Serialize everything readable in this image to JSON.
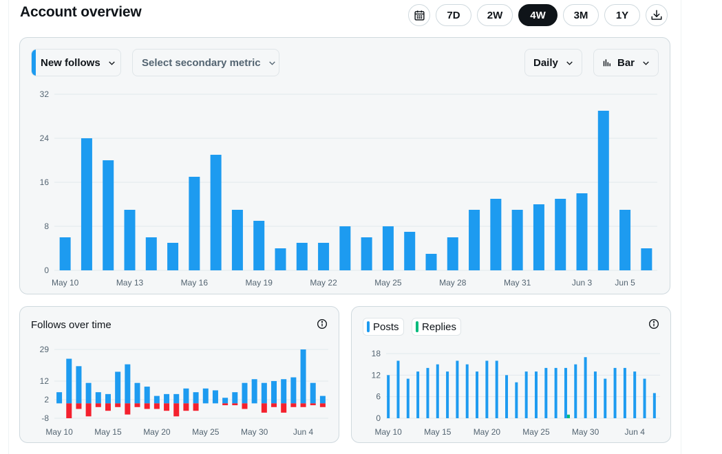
{
  "header": {
    "title": "Account overview",
    "calendar_icon": "calendar-icon",
    "download_icon": "download-icon",
    "ranges": [
      {
        "label": "7D",
        "active": false
      },
      {
        "label": "2W",
        "active": false
      },
      {
        "label": "4W",
        "active": true
      },
      {
        "label": "3M",
        "active": false
      },
      {
        "label": "1Y",
        "active": false
      }
    ]
  },
  "main": {
    "primary_metric": "New follows",
    "secondary_metric": "Select secondary metric",
    "interval": "Daily",
    "chart_type": "Bar",
    "chart_type_icon": "bar-chart-icon"
  },
  "follows_panel": {
    "title": "Follows over time",
    "info_icon": "info-icon"
  },
  "posts_panel": {
    "legend": [
      "Posts",
      "Replies"
    ],
    "info_icon": "info-icon"
  },
  "colors": {
    "blue": "#1d9bf0",
    "red": "#f4212e",
    "green": "#00ba7c"
  },
  "chart_data": [
    {
      "type": "bar",
      "x": [
        "May 10",
        "May 11",
        "May 12",
        "May 13",
        "May 14",
        "May 15",
        "May 16",
        "May 17",
        "May 18",
        "May 19",
        "May 20",
        "May 21",
        "May 22",
        "May 23",
        "May 24",
        "May 25",
        "May 26",
        "May 27",
        "May 28",
        "May 29",
        "May 30",
        "May 31",
        "Jun 1",
        "Jun 2",
        "Jun 3",
        "Jun 4",
        "Jun 5",
        "Jun 6"
      ],
      "x_tick_labels": [
        "May 10",
        "May 13",
        "May 16",
        "May 19",
        "May 22",
        "May 25",
        "May 28",
        "May 31",
        "Jun 3",
        "Jun 5"
      ],
      "series": [
        {
          "name": "New follows",
          "color": "#1d9bf0",
          "values": [
            6,
            24,
            20,
            11,
            6,
            5,
            17,
            21,
            11,
            9,
            4,
            5,
            5,
            8,
            6,
            8,
            7,
            3,
            6,
            11,
            13,
            11,
            12,
            13,
            14,
            29,
            11,
            4
          ]
        }
      ],
      "yticks": [
        0,
        8,
        16,
        24,
        32
      ],
      "ylim": [
        0,
        32
      ],
      "grid": true
    },
    {
      "type": "bar",
      "title": "Follows over time",
      "x": [
        "May 10",
        "May 11",
        "May 12",
        "May 13",
        "May 14",
        "May 15",
        "May 16",
        "May 17",
        "May 18",
        "May 19",
        "May 20",
        "May 21",
        "May 22",
        "May 23",
        "May 24",
        "May 25",
        "May 26",
        "May 27",
        "May 28",
        "May 29",
        "May 30",
        "May 31",
        "Jun 1",
        "Jun 2",
        "Jun 3",
        "Jun 4",
        "Jun 5",
        "Jun 6"
      ],
      "x_tick_labels": [
        "May 10",
        "May 15",
        "May 20",
        "May 25",
        "May 30",
        "Jun 4"
      ],
      "series": [
        {
          "color": "#1d9bf0",
          "values": [
            6,
            24,
            20,
            11,
            6,
            5,
            17,
            21,
            11,
            9,
            4,
            5,
            5,
            8,
            6,
            8,
            7,
            3,
            6,
            11,
            13,
            11,
            12,
            13,
            14,
            29,
            11,
            4
          ]
        },
        {
          "color": "#f4212e",
          "values": [
            0,
            -8,
            -3,
            -7,
            -2,
            -4,
            -2,
            -6,
            -2,
            -3,
            -3,
            -4,
            -7,
            -4,
            -4,
            0,
            0,
            -1,
            -1,
            -3,
            0,
            -5,
            -2,
            -5,
            -2,
            -2,
            -1,
            -2
          ]
        }
      ],
      "yticks": [
        -8,
        2,
        12,
        29
      ],
      "ylim": [
        -8,
        29
      ],
      "grid": true
    },
    {
      "type": "bar",
      "x": [
        "May 10",
        "May 11",
        "May 12",
        "May 13",
        "May 14",
        "May 15",
        "May 16",
        "May 17",
        "May 18",
        "May 19",
        "May 20",
        "May 21",
        "May 22",
        "May 23",
        "May 24",
        "May 25",
        "May 26",
        "May 27",
        "May 28",
        "May 29",
        "May 30",
        "May 31",
        "Jun 1",
        "Jun 2",
        "Jun 3",
        "Jun 4",
        "Jun 5",
        "Jun 6"
      ],
      "x_tick_labels": [
        "May 10",
        "May 15",
        "May 20",
        "May 25",
        "May 30",
        "Jun 4"
      ],
      "series": [
        {
          "name": "Posts",
          "color": "#1d9bf0",
          "values": [
            12,
            16,
            11,
            13,
            14,
            15,
            13,
            16,
            15,
            13,
            16,
            16,
            12,
            10,
            13,
            13,
            14,
            14,
            14,
            15,
            17,
            13,
            11,
            14,
            14,
            13,
            11,
            7
          ]
        },
        {
          "name": "Replies",
          "color": "#00ba7c",
          "values": [
            0,
            0,
            0,
            0,
            0,
            0,
            0,
            0,
            0,
            0,
            0,
            0,
            0,
            0,
            0,
            0,
            0,
            0,
            1,
            0,
            0,
            0,
            0,
            0,
            0,
            0,
            0,
            0
          ]
        }
      ],
      "yticks": [
        0,
        6,
        12,
        18
      ],
      "ylim": [
        0,
        18
      ],
      "grid": true
    }
  ]
}
